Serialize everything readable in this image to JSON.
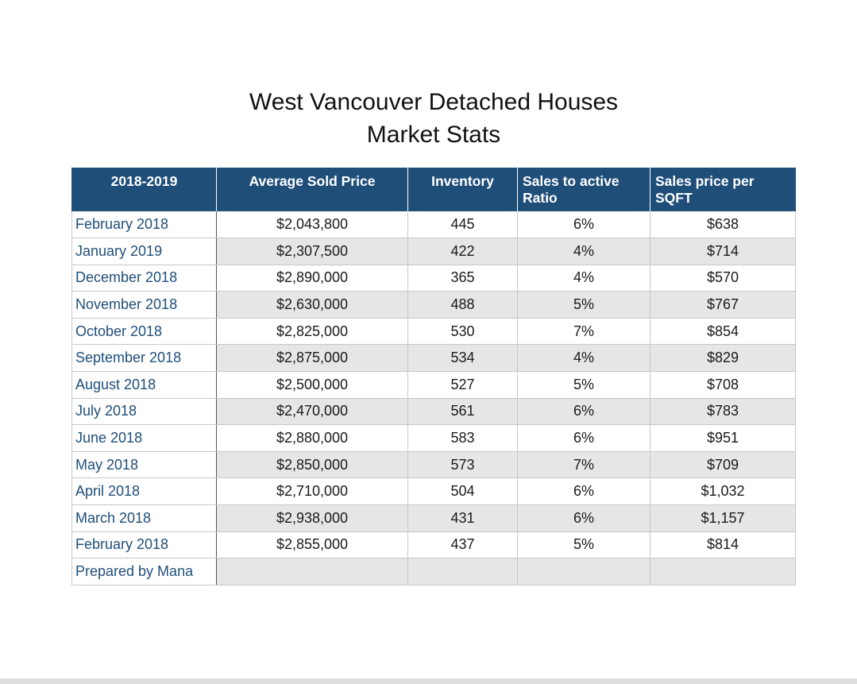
{
  "title": {
    "line1": "West Vancouver Detached Houses",
    "line2": "Market Stats"
  },
  "table": {
    "headers": [
      "2018-2019",
      "Average Sold Price",
      "Inventory",
      "Sales to active Ratio",
      "Sales price per SQFT"
    ],
    "rows": [
      [
        "February 2018",
        "$2,043,800",
        "445",
        "6%",
        "$638"
      ],
      [
        "January 2019",
        "$2,307,500",
        "422",
        "4%",
        "$714"
      ],
      [
        "December 2018",
        "$2,890,000",
        "365",
        "4%",
        "$570"
      ],
      [
        "November 2018",
        "$2,630,000",
        "488",
        "5%",
        "$767"
      ],
      [
        "October 2018",
        "$2,825,000",
        "530",
        "7%",
        "$854"
      ],
      [
        "September 2018",
        "$2,875,000",
        "534",
        "4%",
        "$829"
      ],
      [
        "August 2018",
        "$2,500,000",
        "527",
        "5%",
        "$708"
      ],
      [
        "July 2018",
        "$2,470,000",
        "561",
        "6%",
        "$783"
      ],
      [
        "June 2018",
        "$2,880,000",
        "583",
        "6%",
        "$951"
      ],
      [
        "May 2018",
        "$2,850,000",
        "573",
        "7%",
        "$709"
      ],
      [
        "April 2018",
        "$2,710,000",
        "504",
        "6%",
        "$1,032"
      ],
      [
        "March 2018",
        "$2,938,000",
        "431",
        "6%",
        "$1,157"
      ],
      [
        "February 2018",
        "$2,855,000",
        "437",
        "5%",
        "$814"
      ],
      [
        "Prepared by Mana",
        "",
        "",
        "",
        ""
      ]
    ]
  }
}
